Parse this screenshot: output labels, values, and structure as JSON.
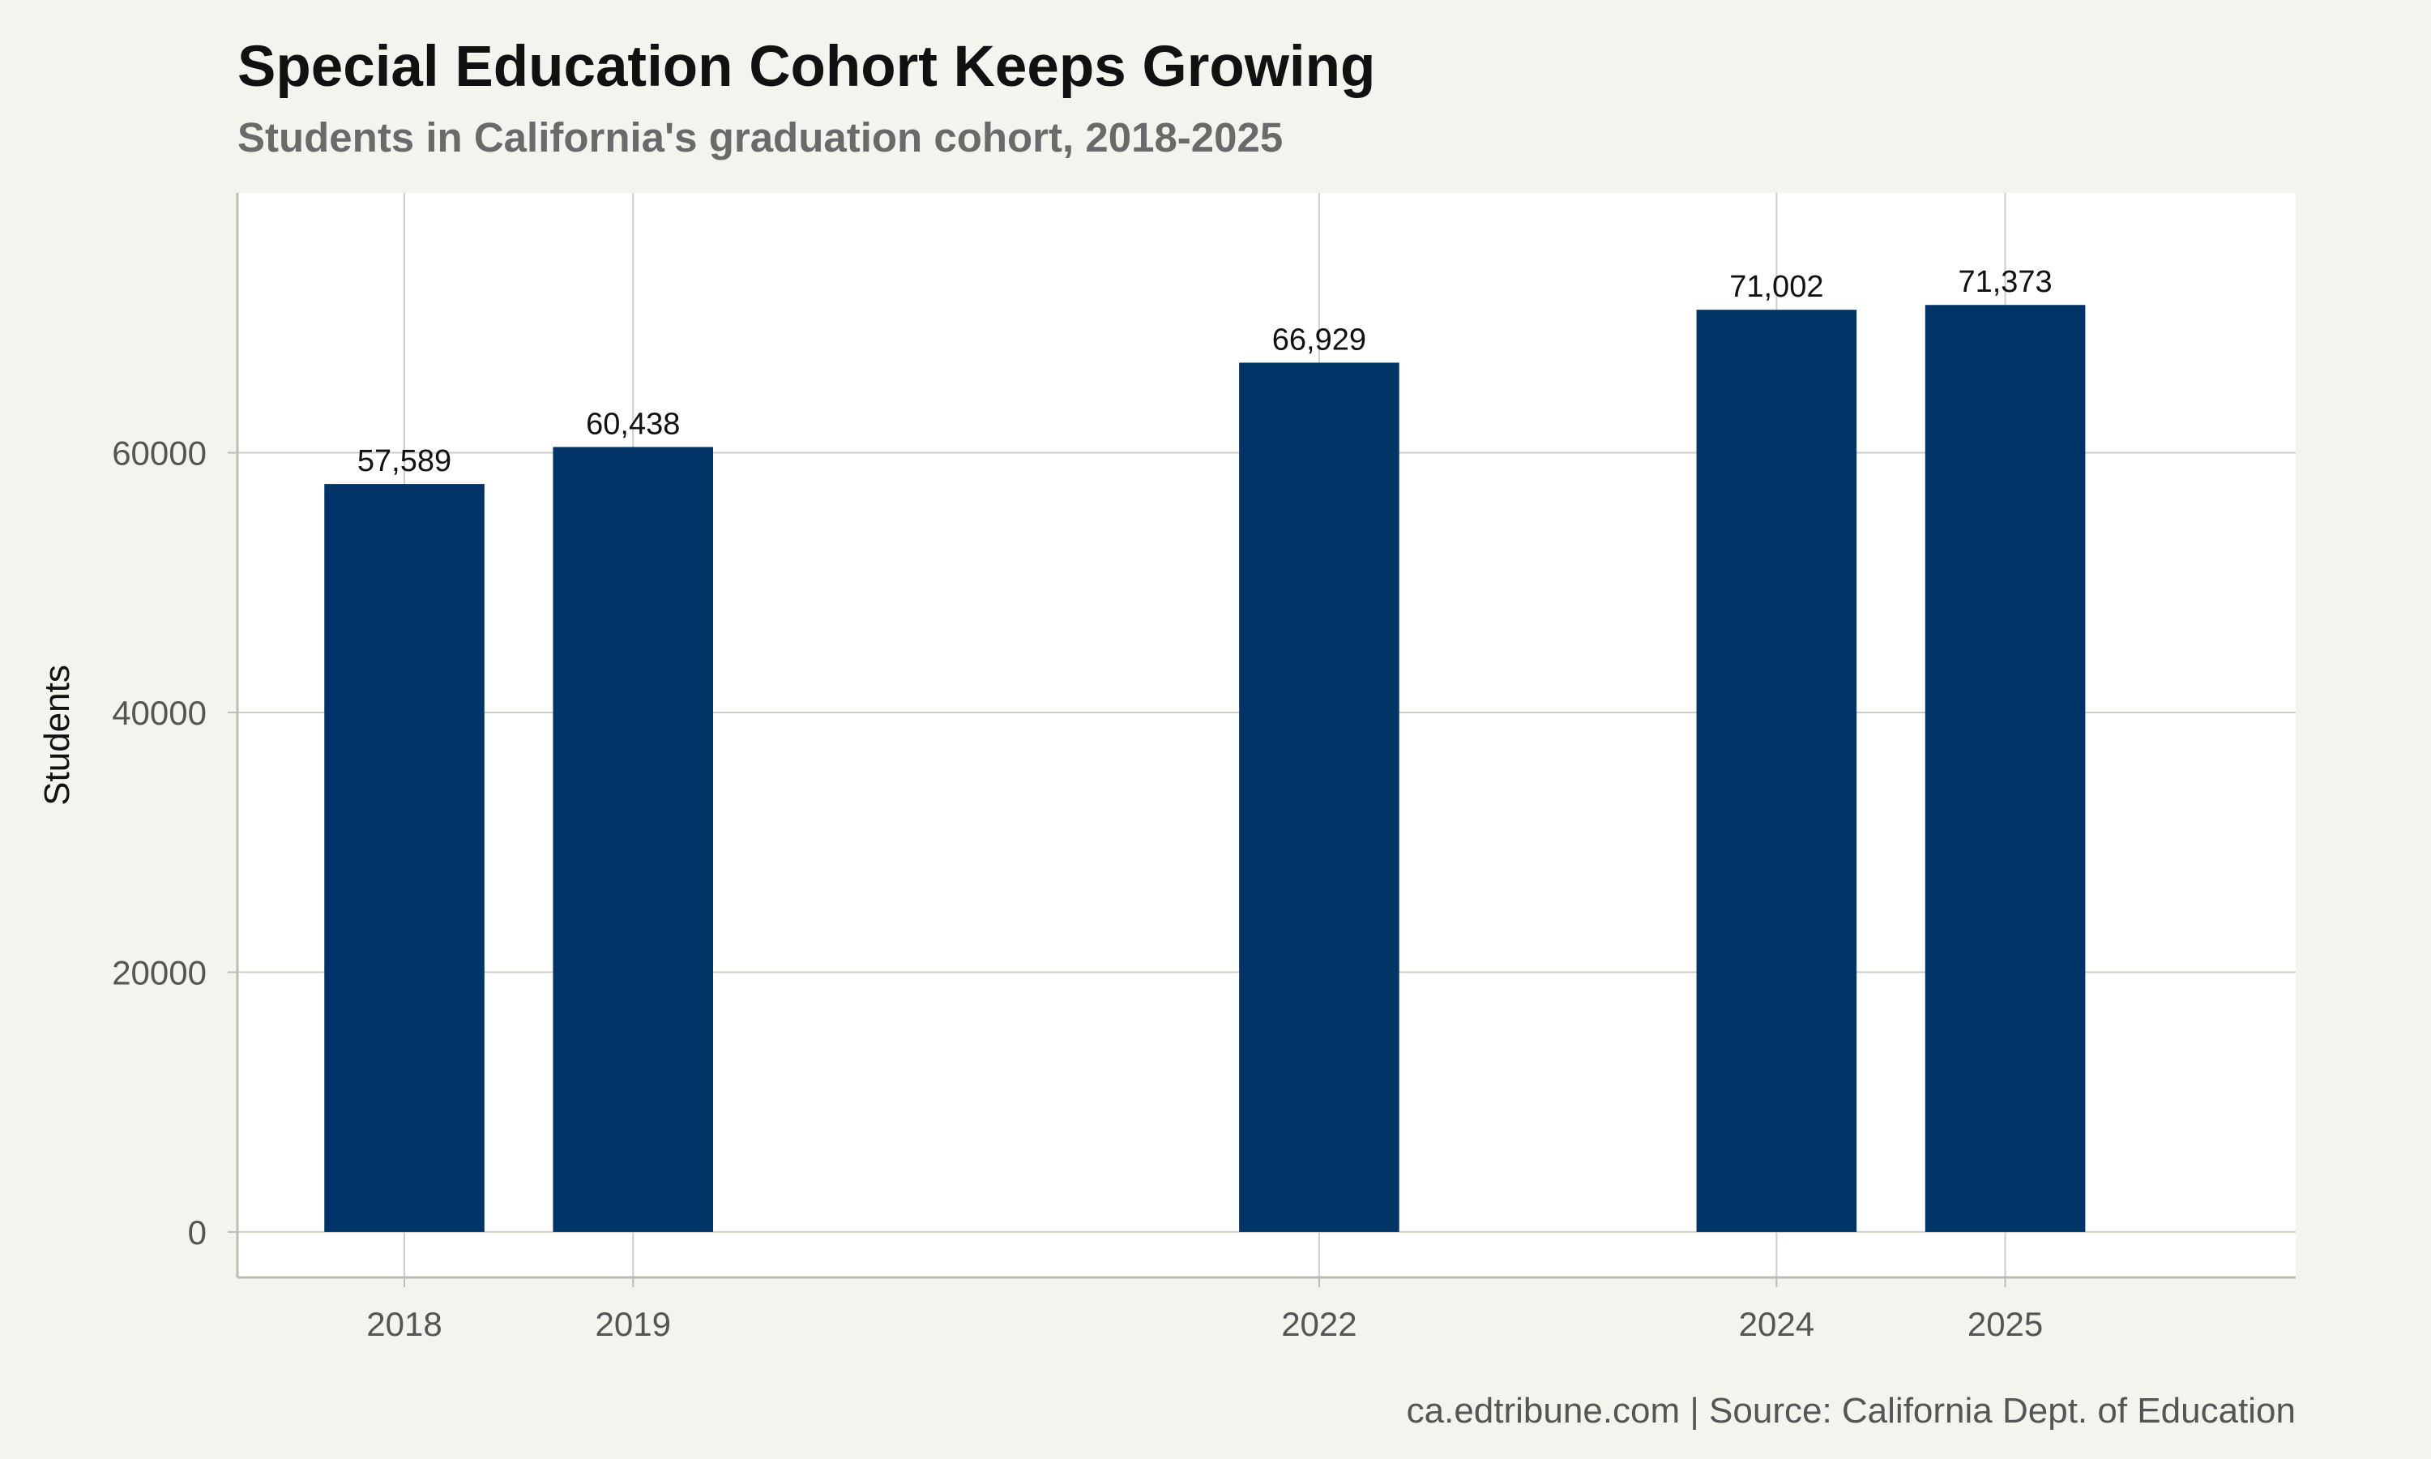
{
  "chart_data": {
    "type": "bar",
    "title": "Special Education Cohort Keeps Growing",
    "subtitle": "Students in California's graduation cohort, 2018-2025",
    "caption": "ca.edtribune.com | Source: California Dept. of Education",
    "xlabel": "",
    "ylabel": "Students",
    "x": [
      2018,
      2019,
      2022,
      2024,
      2025
    ],
    "values": [
      57589,
      60438,
      66929,
      71002,
      71373
    ],
    "data_labels": [
      "57,589",
      "60,438",
      "66,929",
      "71,002",
      "71,373"
    ],
    "xlim": [
      2017.27,
      2026.27
    ],
    "ylim": [
      -3500,
      80000
    ],
    "yticks": [
      0,
      20000,
      40000,
      60000
    ],
    "ytick_labels": [
      "0",
      "20000",
      "40000",
      "60000"
    ],
    "xtick_labels": [
      "2018",
      "2019",
      "2022",
      "2024",
      "2025"
    ],
    "bar_width_years": 0.7,
    "grid": true,
    "legend": "none",
    "colors": {
      "bar": "#003366",
      "background": "#f5f3ee",
      "panel": "#ffffff",
      "grid": "#cfcec6",
      "axis": "#bdbcb3"
    }
  }
}
